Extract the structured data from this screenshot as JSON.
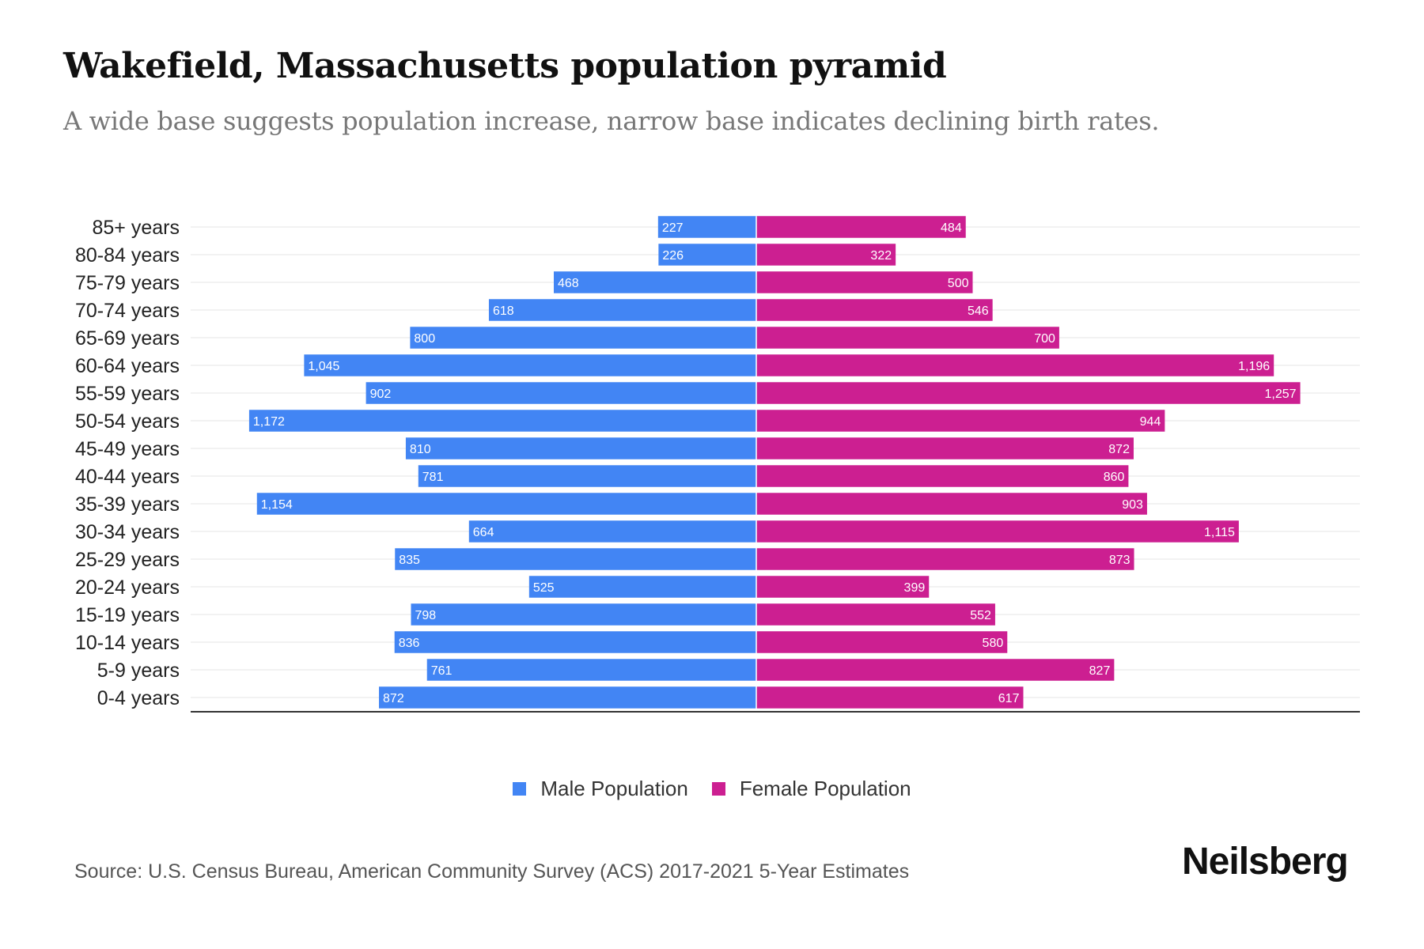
{
  "title": "Wakefield, Massachusetts population pyramid",
  "subtitle": "A wide base suggests population increase, narrow base indicates declining birth rates.",
  "source": "Source: U.S. Census Bureau, American Community Survey (ACS) 2017-2021 5-Year Estimates",
  "logo": "Neilsberg",
  "colors": {
    "male": "#4285f4",
    "female": "#cc1f91"
  },
  "chart_data": {
    "type": "bar",
    "orientation": "horizontal-pyramid",
    "title": "Wakefield, Massachusetts population pyramid",
    "categories": [
      "85+ years",
      "80-84 years",
      "75-79 years",
      "70-74 years",
      "65-69 years",
      "60-64 years",
      "55-59 years",
      "50-54 years",
      "45-49 years",
      "40-44 years",
      "35-39 years",
      "30-34 years",
      "25-29 years",
      "20-24 years",
      "15-19 years",
      "10-14 years",
      "5-9 years",
      "0-4 years"
    ],
    "series": [
      {
        "name": "Male Population",
        "values": [
          227,
          226,
          468,
          618,
          800,
          1045,
          902,
          1172,
          810,
          781,
          1154,
          664,
          835,
          525,
          798,
          836,
          761,
          872
        ],
        "labels": [
          "227",
          "226",
          "468",
          "618",
          "800",
          "1,045",
          "902",
          "1,172",
          "810",
          "781",
          "1,154",
          "664",
          "835",
          "525",
          "798",
          "836",
          "761",
          "872"
        ]
      },
      {
        "name": "Female Population",
        "values": [
          484,
          322,
          500,
          546,
          700,
          1196,
          1257,
          944,
          872,
          860,
          903,
          1115,
          873,
          399,
          552,
          580,
          827,
          617
        ],
        "labels": [
          "484",
          "322",
          "500",
          "546",
          "700",
          "1,196",
          "1,257",
          "944",
          "872",
          "860",
          "903",
          "1,115",
          "873",
          "399",
          "552",
          "580",
          "827",
          "617"
        ]
      }
    ],
    "xlim": [
      -1350,
      1350
    ],
    "grid": true,
    "legend": "bottom-center"
  }
}
